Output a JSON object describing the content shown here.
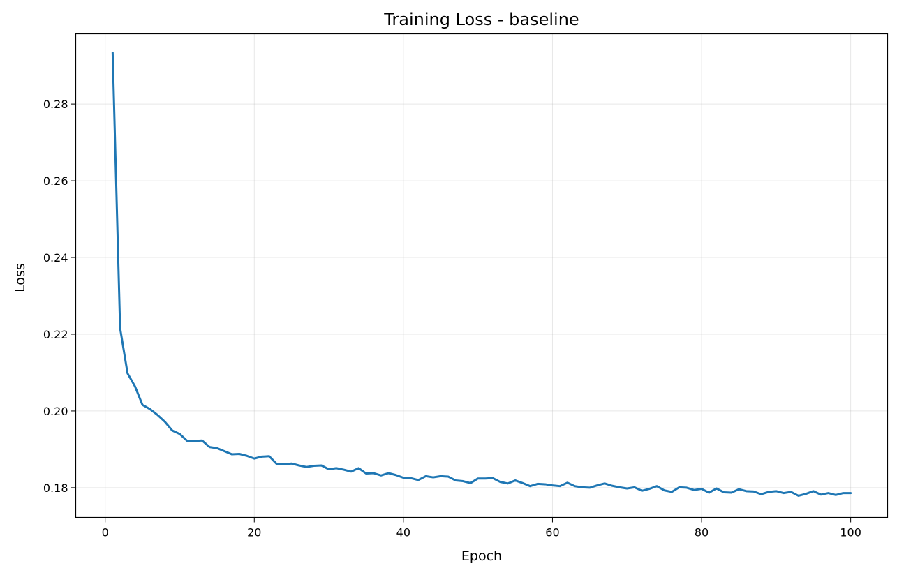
{
  "chart_data": {
    "type": "line",
    "title": "Training Loss - baseline",
    "xlabel": "Epoch",
    "ylabel": "Loss",
    "xlim": [
      -3.95,
      104.95
    ],
    "ylim": [
      0.17225,
      0.2983
    ],
    "xticks": [
      0,
      20,
      40,
      60,
      80,
      100
    ],
    "xtick_labels": [
      "0",
      "20",
      "40",
      "60",
      "80",
      "100"
    ],
    "yticks": [
      0.18,
      0.2,
      0.22,
      0.24,
      0.26,
      0.28
    ],
    "ytick_labels": [
      "0.18",
      "0.20",
      "0.22",
      "0.24",
      "0.26",
      "0.28"
    ],
    "grid": true,
    "series": [
      {
        "color": "#1f77b4",
        "x": [
          1,
          2,
          3,
          4,
          5,
          6,
          7,
          8,
          9,
          10,
          11,
          12,
          13,
          14,
          15,
          16,
          17,
          18,
          19,
          20,
          21,
          22,
          23,
          24,
          25,
          26,
          27,
          28,
          29,
          30,
          31,
          32,
          33,
          34,
          35,
          36,
          37,
          38,
          39,
          40,
          41,
          42,
          43,
          44,
          45,
          46,
          47,
          48,
          49,
          50,
          51,
          52,
          53,
          54,
          55,
          56,
          57,
          58,
          59,
          60,
          61,
          62,
          63,
          64,
          65,
          66,
          67,
          68,
          69,
          70,
          71,
          72,
          73,
          74,
          75,
          76,
          77,
          78,
          79,
          80,
          81,
          82,
          83,
          84,
          85,
          86,
          87,
          88,
          89,
          90,
          91,
          92,
          93,
          94,
          95,
          96,
          97,
          98,
          99,
          100
        ],
        "y": [
          0.2934,
          0.2216,
          0.2098,
          0.2064,
          0.2016,
          0.2005,
          0.199,
          0.1972,
          0.1949,
          0.194,
          0.1922,
          0.1922,
          0.1923,
          0.1906,
          0.1903,
          0.1895,
          0.1887,
          0.1888,
          0.1883,
          0.1876,
          0.1881,
          0.1882,
          0.1862,
          0.1861,
          0.1863,
          0.1858,
          0.1854,
          0.1857,
          0.1858,
          0.1848,
          0.1851,
          0.1847,
          0.1842,
          0.1851,
          0.1837,
          0.1838,
          0.1832,
          0.1838,
          0.1833,
          0.1826,
          0.1825,
          0.182,
          0.183,
          0.1827,
          0.183,
          0.1829,
          0.1819,
          0.1817,
          0.1812,
          0.1824,
          0.1824,
          0.1825,
          0.1815,
          0.1811,
          0.1819,
          0.1812,
          0.1804,
          0.181,
          0.1809,
          0.1806,
          0.1804,
          0.1813,
          0.1804,
          0.1801,
          0.18,
          0.1806,
          0.1811,
          0.1805,
          0.1801,
          0.1798,
          0.1801,
          0.1792,
          0.1797,
          0.1804,
          0.1793,
          0.1789,
          0.1801,
          0.18,
          0.1794,
          0.1797,
          0.1787,
          0.1798,
          0.1788,
          0.1787,
          0.1796,
          0.1791,
          0.179,
          0.1783,
          0.1789,
          0.1791,
          0.1786,
          0.1789,
          0.1779,
          0.1784,
          0.1791,
          0.1782,
          0.1786,
          0.1781,
          0.1786,
          0.1786
        ]
      }
    ]
  }
}
